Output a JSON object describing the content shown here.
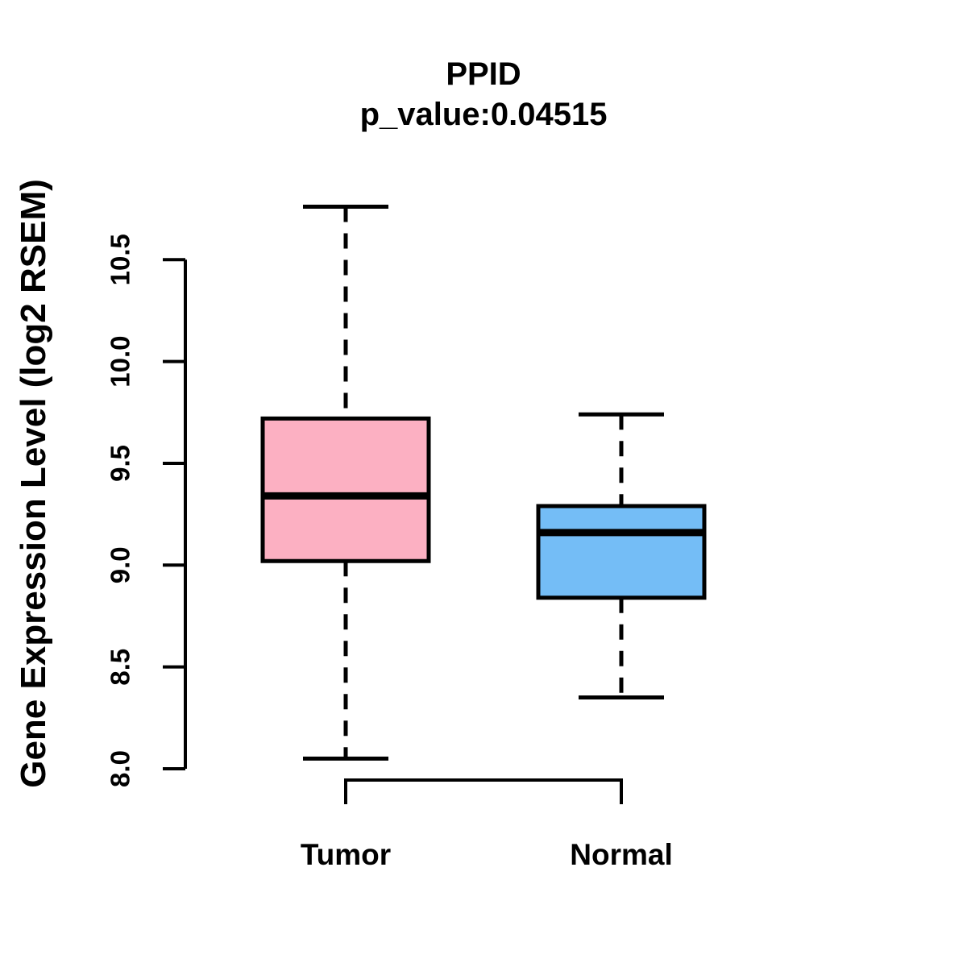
{
  "chart_data": {
    "type": "boxplot",
    "title": "PPID",
    "subtitle": "p_value:0.04515",
    "ylabel": "Gene Expression Level (log2 RSEM)",
    "xlabel": "",
    "ylim": [
      8.0,
      10.5
    ],
    "y_tick_labels": [
      "8.0",
      "8.5",
      "9.0",
      "9.5",
      "10.0",
      "10.5"
    ],
    "grid": "off",
    "legend": "none",
    "colors": {
      "axis": "#000000",
      "text": "#000000",
      "background": "#ffffff"
    },
    "groups": [
      {
        "label": "Tumor",
        "fill_color": "#FCB0C2",
        "whisker_low": 8.05,
        "q1": 9.02,
        "median": 9.34,
        "q3": 9.72,
        "whisker_high": 10.76
      },
      {
        "label": "Normal",
        "fill_color": "#74BDF6",
        "whisker_low": 8.35,
        "q1": 8.84,
        "median": 9.16,
        "q3": 9.29,
        "whisker_high": 9.74
      }
    ]
  }
}
